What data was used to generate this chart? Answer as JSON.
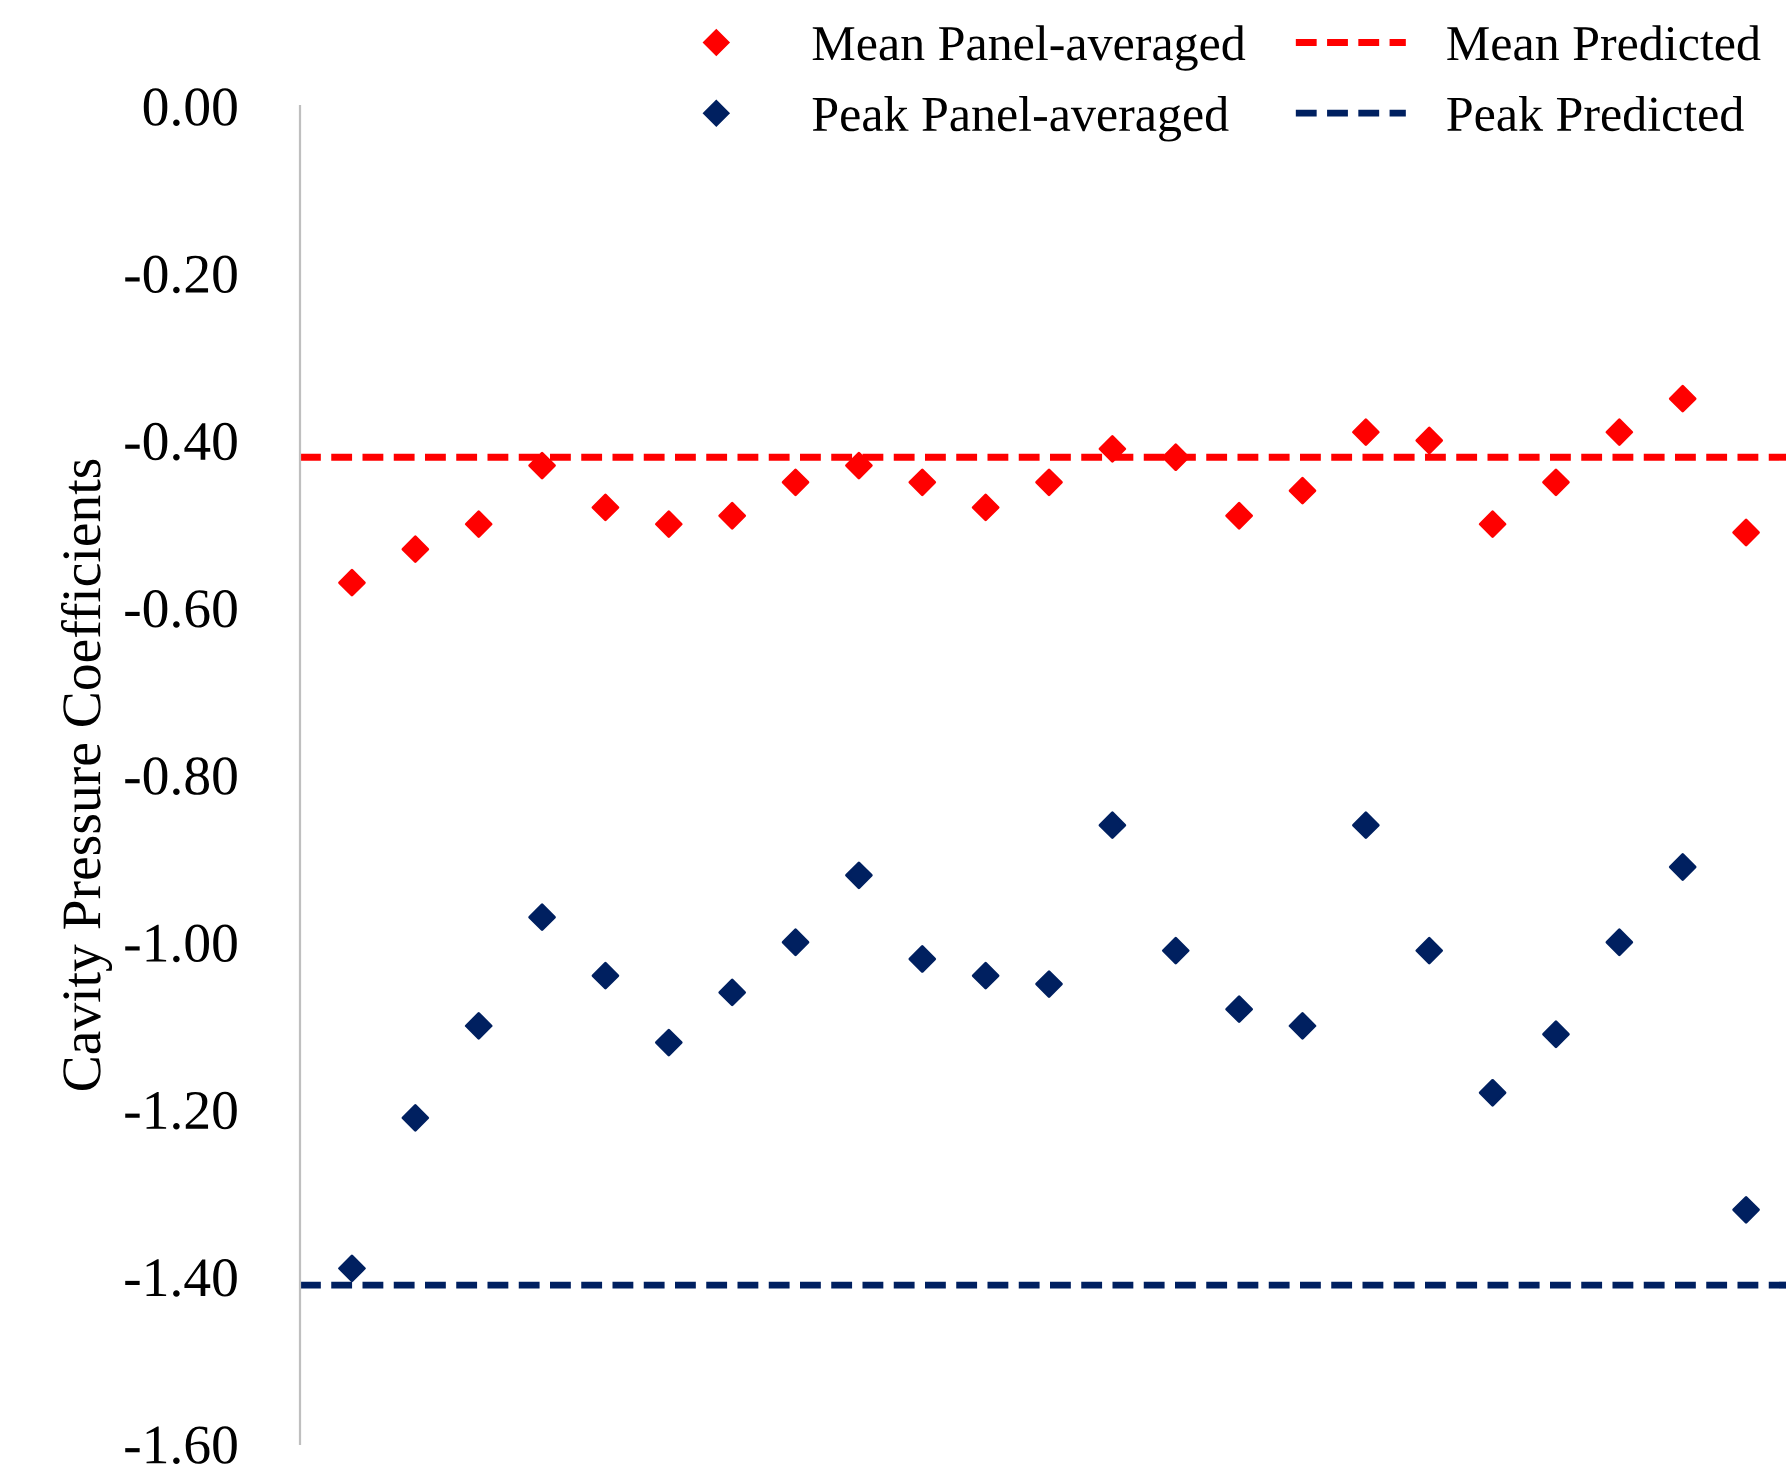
{
  "chart_data": {
    "type": "scatter",
    "ylabel": "Cavity Pressure Coefficients",
    "categories": [
      null,
      null,
      null,
      null,
      null,
      null,
      null,
      null,
      null,
      null,
      null,
      null,
      null,
      null,
      null,
      null,
      null,
      null,
      null,
      null,
      null,
      null,
      null
    ],
    "series": [
      {
        "name": "Mean Panel-averaged",
        "color": "#ff0000",
        "values": [
          -0.57,
          -0.53,
          -0.5,
          -0.43,
          -0.48,
          -0.5,
          -0.49,
          -0.45,
          -0.43,
          -0.45,
          -0.48,
          -0.45,
          -0.41,
          -0.42,
          -0.49,
          -0.46,
          -0.39,
          -0.4,
          -0.5,
          -0.45,
          -0.39,
          -0.35,
          -0.51
        ]
      },
      {
        "name": "Peak Panel-averaged",
        "color": "#002060",
        "values": [
          -1.39,
          -1.21,
          -1.1,
          -0.97,
          -1.04,
          -1.12,
          -1.06,
          -1.0,
          -0.92,
          -1.02,
          -1.04,
          -1.05,
          -0.86,
          -1.01,
          -1.08,
          -1.1,
          -0.86,
          -1.01,
          -1.18,
          -1.11,
          -1.0,
          -0.91,
          -1.32
        ]
      }
    ],
    "ref_lines": [
      {
        "axis": "y",
        "value": -0.42,
        "label": "Mean Predicted",
        "color": "#ff0000",
        "line_style": "dashed"
      },
      {
        "axis": "y",
        "value": -1.41,
        "label": "Peak Predicted",
        "color": "#002060",
        "line_style": "dashed"
      }
    ],
    "ylim": [
      -1.6,
      0
    ],
    "yticks": [
      {
        "value": 0,
        "label": "0.00"
      },
      {
        "value": -0.2,
        "label": "-0.20"
      },
      {
        "value": -0.4,
        "label": "-0.40"
      },
      {
        "value": -0.6,
        "label": "-0.60"
      },
      {
        "value": -0.8,
        "label": "-0.80"
      },
      {
        "value": -1.0,
        "label": "-1.00"
      },
      {
        "value": -1.2,
        "label": "-1.20"
      },
      {
        "value": -1.4,
        "label": "-1.40"
      },
      {
        "value": -1.6,
        "label": "-1.60"
      }
    ],
    "tick_labels": "y",
    "marker": "diamond",
    "grid": false,
    "legend": "top right"
  }
}
